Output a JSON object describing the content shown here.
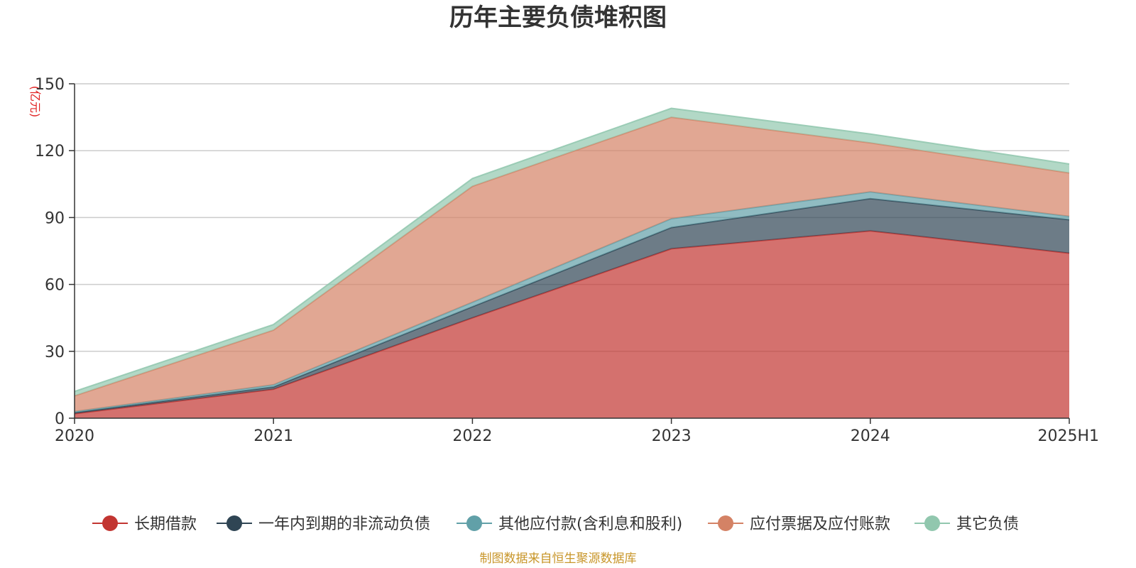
{
  "chart_data": {
    "type": "area",
    "stacked": true,
    "title": "历年主要负债堆积图",
    "unit_label": "(亿元)",
    "categories": [
      "2020",
      "2021",
      "2022",
      "2023",
      "2024",
      "2025H1"
    ],
    "ylim": [
      0,
      150
    ],
    "yticks": [
      "0",
      "30",
      "60",
      "90",
      "120",
      "150"
    ],
    "grid": true,
    "legend_position": "bottom",
    "series": [
      {
        "name": "长期借款",
        "color": "#c23531",
        "values": [
          2,
          13,
          45,
          76,
          84,
          74
        ]
      },
      {
        "name": "一年内到期的非流动负债",
        "color": "#2f4554",
        "values": [
          0.5,
          1,
          5,
          9.5,
          14.5,
          15
        ]
      },
      {
        "name": "其他应付款(含利息和股利)",
        "color": "#61a0a8",
        "values": [
          0.5,
          1,
          2,
          4,
          3,
          1.5
        ]
      },
      {
        "name": "应付票据及应付账款",
        "color": "#d48265",
        "values": [
          7,
          24.5,
          52,
          45.5,
          22,
          19.5
        ]
      },
      {
        "name": "其它负债",
        "color": "#91c7ae",
        "values": [
          2,
          2.5,
          3.5,
          4,
          4,
          4
        ]
      }
    ]
  },
  "footer": {
    "source": "制图数据来自恒生聚源数据库"
  }
}
